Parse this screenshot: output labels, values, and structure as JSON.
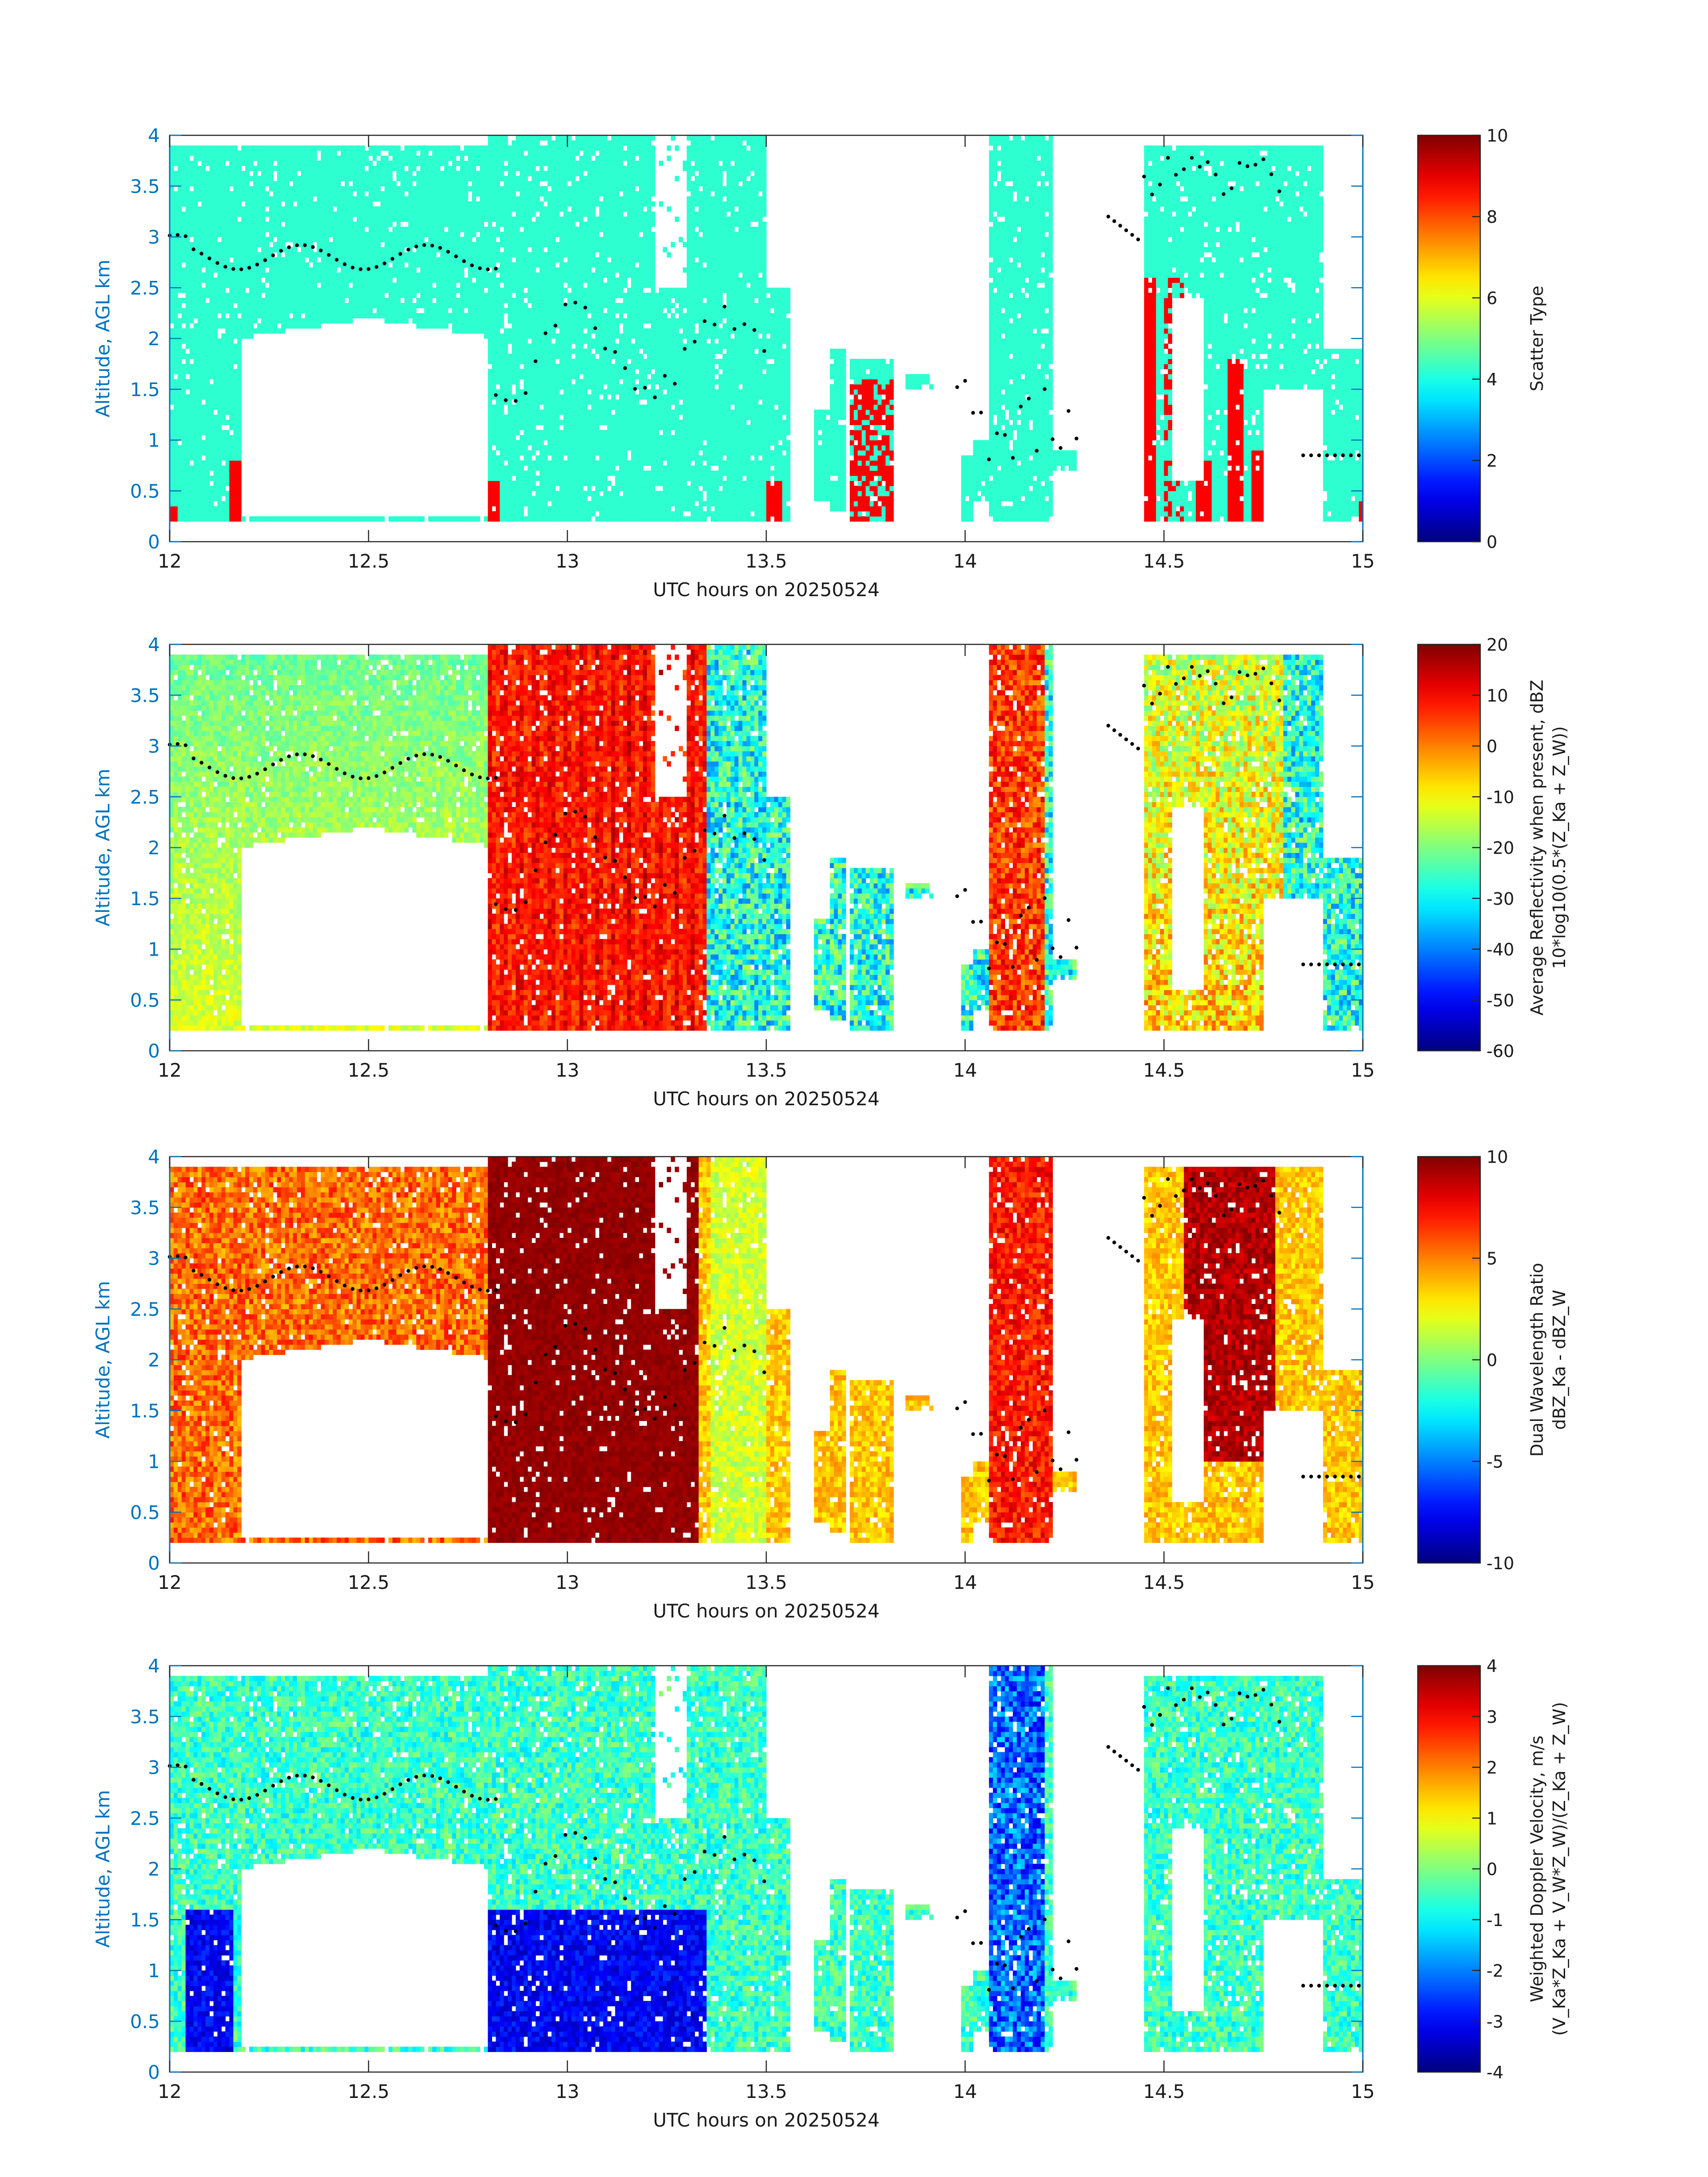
{
  "figure": {
    "background": "#ffffff",
    "x_label": "UTC hours on 20250524",
    "y_label": "Altitude, AGL km",
    "x_ticks": [
      "12",
      "12.5",
      "13",
      "13.5",
      "14",
      "14.5",
      "15"
    ],
    "y_ticks": [
      "0",
      "0.5",
      "1",
      "1.5",
      "2",
      "2.5",
      "3",
      "3.5",
      "4"
    ]
  },
  "chart_data": [
    {
      "type": "heatmap",
      "title": "",
      "xlabel": "UTC hours on 20250524",
      "ylabel": "Altitude, AGL km",
      "xlim": [
        12,
        15
      ],
      "ylim": [
        0,
        4
      ],
      "colorbar_label": "Scatter Type",
      "colorbar_label2": "",
      "clim": [
        0,
        10
      ],
      "colorbar_ticks": [
        "0",
        "2",
        "4",
        "6",
        "8",
        "10"
      ],
      "colormap": "jet",
      "field": "scatter_type",
      "cloud_base_points": "black dots"
    },
    {
      "type": "heatmap",
      "title": "",
      "xlabel": "UTC hours on 20250524",
      "ylabel": "Altitude, AGL km",
      "xlim": [
        12,
        15
      ],
      "ylim": [
        0,
        4
      ],
      "colorbar_label": "Average Reflectivity when present, dBZ",
      "colorbar_label2": "10*log10(0.5*(Z_Ka + Z_W))",
      "clim": [
        -60,
        20
      ],
      "colorbar_ticks": [
        "-60",
        "-50",
        "-40",
        "-30",
        "-20",
        "-10",
        "0",
        "10",
        "20"
      ],
      "colormap": "jet",
      "field": "reflectivity",
      "cloud_base_points": "black dots"
    },
    {
      "type": "heatmap",
      "title": "",
      "xlabel": "UTC hours on 20250524",
      "ylabel": "Altitude, AGL km",
      "xlim": [
        12,
        15
      ],
      "ylim": [
        0,
        4
      ],
      "colorbar_label": "Dual Wavelength Ratio",
      "colorbar_label2": "dBZ_Ka - dBZ_W",
      "clim": [
        -10,
        10
      ],
      "colorbar_ticks": [
        "-10",
        "-5",
        "0",
        "5",
        "10"
      ],
      "colormap": "jet",
      "field": "dwr",
      "cloud_base_points": "black dots"
    },
    {
      "type": "heatmap",
      "title": "",
      "xlabel": "UTC hours on 20250524",
      "ylabel": "Altitude, AGL km",
      "xlim": [
        12,
        15
      ],
      "ylim": [
        0,
        4
      ],
      "colorbar_label": "Weighted Doppler Velocity, m/s",
      "colorbar_label2": "(V_Ka*Z_Ka + V_W*Z_W)/(Z_Ka + Z_W)",
      "clim": [
        -4,
        4
      ],
      "colorbar_ticks": [
        "-4",
        "-3",
        "-2",
        "-1",
        "0",
        "1",
        "2",
        "3",
        "4"
      ],
      "colormap": "jet",
      "field": "velocity",
      "cloud_base_points": "black dots"
    }
  ]
}
